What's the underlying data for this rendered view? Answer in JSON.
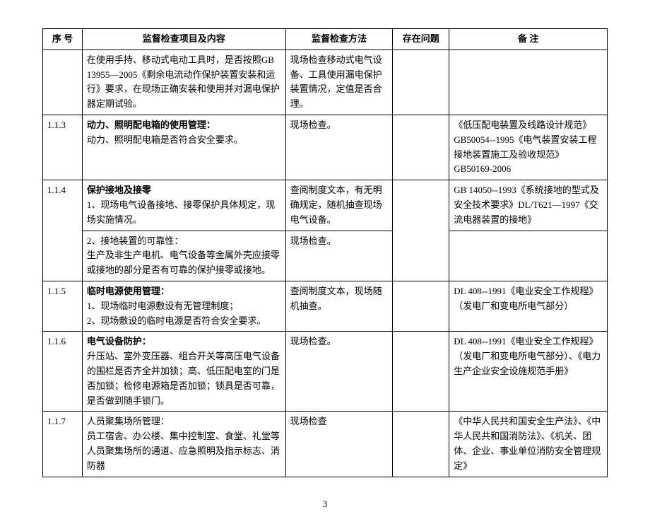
{
  "headers": {
    "seq": "序  号",
    "content": "监督检查项目及内容",
    "method": "监督检查方法",
    "issue": "存在问题",
    "note": "备  注"
  },
  "rows": [
    {
      "seq": "",
      "content": "在使用手持、移动式电动工具时，是否按照GB 13955—2005《剩余电流动作保护装置安装和运行》要求，在现场正确安装和使用并对漏电保护器定期试验。",
      "method": "现场检查移动式电气设备、工具使用漏电保护装置情况，定值是否合理。",
      "issue": "",
      "note": ""
    },
    {
      "seq": "1.1.3",
      "content_bold": "动力、照明配电箱的使用管理：",
      "content_rest": "动力、照明配电箱是否符合安全要求。",
      "method": "现场检查。",
      "issue": "",
      "note": "《低压配电装置及线路设计规范》GB50054--1995《电气装置安装工程接地装置施工及验收规范》GB50169-2006"
    },
    {
      "seq": "1.1.4",
      "content_bold": "保护接地及接零",
      "content_rest": "",
      "method": "",
      "issue": "",
      "note": "",
      "sub": [
        {
          "content": "1、现场电气设备接地、接零保护具体规定，现场实施情况。",
          "method": "查阅制度文本，有无明确规定，随机抽查现场电气设备。",
          "note": "GB 14050--1993《系统接地的型式及安全技术要求》DL/T621—1997《交流电器装置的接地》"
        },
        {
          "content": "2、接地装置的可靠性：\n生产及非生产电机、电气设备等金属外壳应接零或接地的部分是否有可靠的保护接零或接地。",
          "method": "现场检查。",
          "note": ""
        }
      ]
    },
    {
      "seq": "1.1.5",
      "content_bold": "临时电源使用管理：",
      "content_rest": "1、现场临时电源敷设有无管理制度；\n2、现场敷设的临时电源是否符合安全要求。",
      "method": "查阅制度文本，现场随机抽查。",
      "issue": "",
      "note": "DL 408--1991《电业安全工作规程》（发电厂和变电所电气部分）"
    },
    {
      "seq": "1.1.6",
      "content_bold": "电气设备防护：",
      "content_rest": "升压站、室外变压器、组合开关等高压电气设备的围栏是否齐全并加锁；高、低压配电室的门是否加锁；检修电源箱是否加锁；锁具是否可靠，是否做到随手锁门。",
      "method": "现场检查。",
      "issue": "",
      "note": "DL 408--1991《电业安全工作规程》（发电厂和变电所电气部分）、《电力生产企业安全设施规范手册》"
    },
    {
      "seq": "1.1.7",
      "content": "人员聚集场所管理：\n员工宿舍、办公楼、集中控制室、食堂、礼堂等人员聚集场所的通道、应急照明及指示标志、消防器",
      "method": "现场检查",
      "issue": "",
      "note": "《中华人民共和国安全生产法》、《中华人民共和国消防法》、《机关、团体、企业、事业单位消防安全管理规定》"
    }
  ],
  "page_number": "3"
}
